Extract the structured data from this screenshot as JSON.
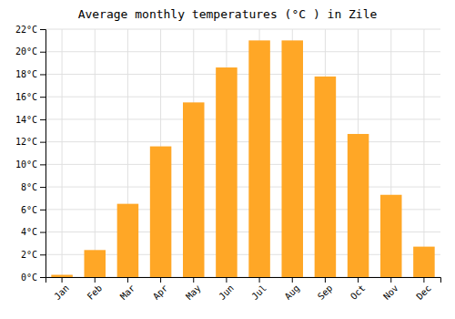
{
  "chart_data": {
    "type": "bar",
    "title": "Average monthly temperatures (°C ) in Zile",
    "categories": [
      "Jan",
      "Feb",
      "Mar",
      "Apr",
      "May",
      "Jun",
      "Jul",
      "Aug",
      "Sep",
      "Oct",
      "Nov",
      "Dec"
    ],
    "values": [
      0.2,
      2.4,
      6.5,
      11.6,
      15.5,
      18.6,
      21.0,
      21.0,
      17.8,
      12.7,
      7.3,
      2.7
    ],
    "color": "#FFA726",
    "ylim": [
      0,
      22
    ],
    "yticks": [
      {
        "value": 0,
        "label": "0°C"
      },
      {
        "value": 2,
        "label": "2°C"
      },
      {
        "value": 4,
        "label": "4°C"
      },
      {
        "value": 6,
        "label": "6°C"
      },
      {
        "value": 8,
        "label": "8°C"
      },
      {
        "value": 10,
        "label": "10°C"
      },
      {
        "value": 12,
        "label": "12°C"
      },
      {
        "value": 14,
        "label": "14°C"
      },
      {
        "value": 16,
        "label": "16°C"
      },
      {
        "value": 18,
        "label": "18°C"
      },
      {
        "value": 20,
        "label": "20°C"
      },
      {
        "value": 22,
        "label": "22°C"
      }
    ],
    "grid": true
  }
}
